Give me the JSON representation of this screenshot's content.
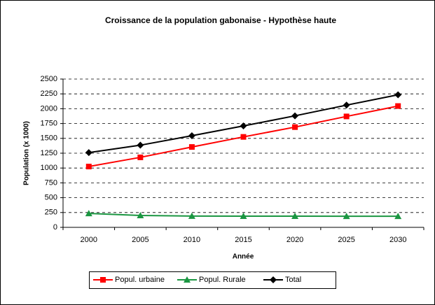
{
  "chart_data": {
    "type": "line",
    "title": "Croissance de la population gabonaise - Hypothèse haute",
    "x_label": "Année",
    "y_label": "Population (x 1000)",
    "x": [
      2000,
      2005,
      2010,
      2015,
      2020,
      2025,
      2030
    ],
    "xlim": [
      1997.5,
      2032.5
    ],
    "ylim": [
      0,
      2500
    ],
    "yticks": [
      0,
      250,
      500,
      750,
      1000,
      1250,
      1500,
      1750,
      2000,
      2250,
      2500
    ],
    "grid": true,
    "legend": "bottom",
    "series": [
      {
        "name": "Popul. urbaine",
        "color": "#ff0000",
        "marker": "square",
        "values": [
          1025,
          1180,
          1355,
          1525,
          1690,
          1870,
          2045
        ]
      },
      {
        "name": "Popul. Rurale",
        "color": "#1a9641",
        "marker": "triangle",
        "values": [
          235,
          200,
          190,
          188,
          188,
          187,
          187
        ]
      },
      {
        "name": "Total",
        "color": "#000000",
        "marker": "diamond",
        "values": [
          1260,
          1385,
          1545,
          1710,
          1880,
          2060,
          2235
        ]
      }
    ]
  }
}
